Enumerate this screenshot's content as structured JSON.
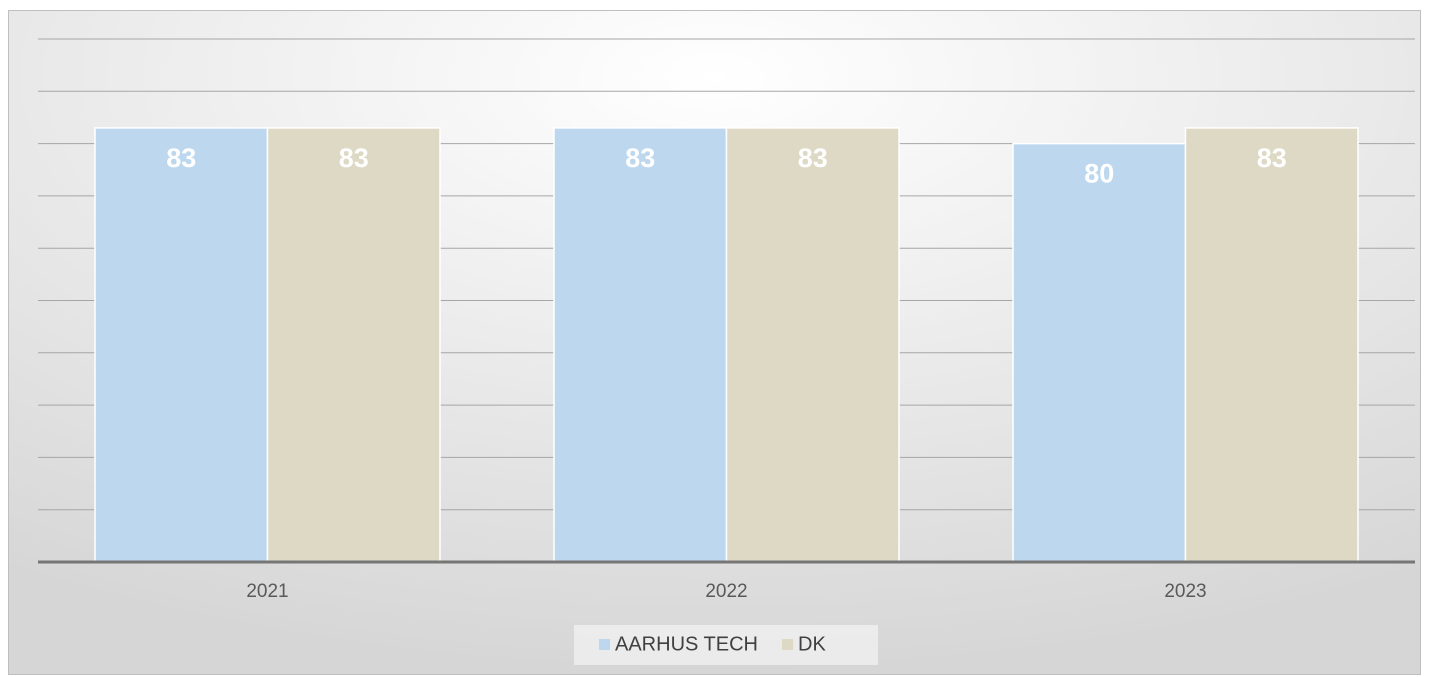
{
  "chart_data": {
    "type": "bar",
    "categories": [
      "2021",
      "2022",
      "2023"
    ],
    "series": [
      {
        "name": "AARHUS TECH",
        "color": "#bdd7ee",
        "values": [
          83,
          83,
          80
        ]
      },
      {
        "name": "DK",
        "color": "#ddd9c4",
        "values": [
          83,
          83,
          83
        ]
      }
    ],
    "ylim": [
      0,
      100
    ],
    "yticks": [
      0,
      10,
      20,
      30,
      40,
      50,
      60,
      70,
      80,
      90,
      100
    ],
    "grid": true,
    "legend": "bottom"
  }
}
